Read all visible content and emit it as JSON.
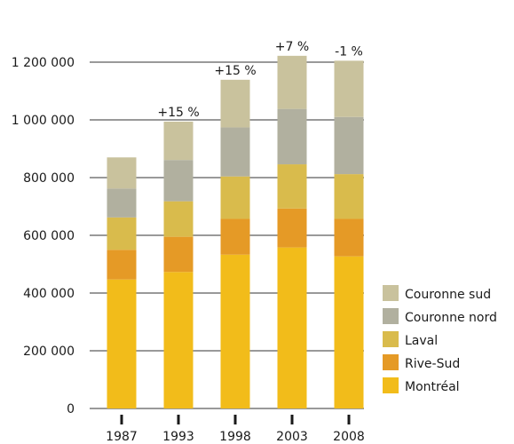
{
  "chart_data": {
    "type": "bar",
    "stacked": true,
    "categories": [
      "1987",
      "1993",
      "1998",
      "2003",
      "2008"
    ],
    "ylim": [
      0,
      1200000
    ],
    "yticks": [
      0,
      200000,
      400000,
      600000,
      800000,
      1000000,
      1200000
    ],
    "ytick_labels": [
      "0",
      "200 000",
      "400 000",
      "600 000",
      "800 000",
      "1 000 000",
      "1 200 000"
    ],
    "grid": "horizontal",
    "legend_position": "right",
    "series": [
      {
        "name": "Montréal",
        "color": "#f2bc1a",
        "values": [
          447000,
          473000,
          533000,
          558000,
          527000
        ]
      },
      {
        "name": "Rive-Sud",
        "color": "#e59a26",
        "values": [
          103000,
          122000,
          124000,
          135000,
          130000
        ]
      },
      {
        "name": "Laval",
        "color": "#d9bb4c",
        "values": [
          112000,
          123000,
          147000,
          153000,
          155000
        ]
      },
      {
        "name": "Couronne nord",
        "color": "#b1b09f",
        "values": [
          100000,
          143000,
          170000,
          192000,
          198000
        ]
      },
      {
        "name": "Couronne sud",
        "color": "#c9c29d",
        "values": [
          108000,
          133000,
          165000,
          184000,
          195000
        ]
      }
    ],
    "annotations": [
      {
        "category": "1993",
        "text": "+15 %"
      },
      {
        "category": "1998",
        "text": "+15 %"
      },
      {
        "category": "2003",
        "text": "+7 %"
      },
      {
        "category": "2008",
        "text": "-1 %"
      }
    ]
  }
}
